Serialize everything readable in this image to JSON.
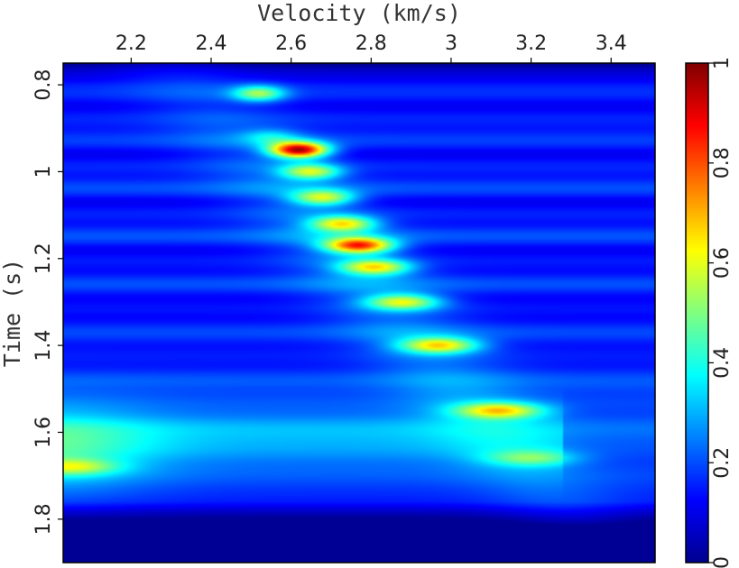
{
  "chart_data": {
    "type": "heatmap",
    "colormap": "jet",
    "xlabel": "Velocity (km/s)",
    "ylabel": "Time (s)",
    "xlim": [
      2.03,
      3.51
    ],
    "ylim": [
      0.75,
      1.9
    ],
    "y_inverted": true,
    "x_axis_position": "top",
    "x_ticks": [
      2.2,
      2.4,
      2.6,
      2.8,
      3,
      3.2,
      3.4
    ],
    "x_tick_labels": [
      "2.2",
      "2.4",
      "2.6",
      "2.8",
      "3",
      "3.2",
      "3.4"
    ],
    "y_ticks": [
      0.8,
      1,
      1.2,
      1.4,
      1.6,
      1.8
    ],
    "y_tick_labels": [
      "0.8",
      "1",
      "1.2",
      "1.4",
      "1.6",
      "1.8"
    ],
    "colorbar": {
      "range": [
        0,
        1
      ],
      "ticks": [
        0,
        0.2,
        0.4,
        0.6,
        0.8,
        1
      ],
      "tick_labels": [
        "0",
        "0.2",
        "0.4",
        "0.6",
        "0.8",
        "1"
      ]
    },
    "semblance_peaks": [
      {
        "velocity": 2.52,
        "time": 0.82,
        "value": 0.55
      },
      {
        "velocity": 2.55,
        "time": 0.92,
        "value": 0.35
      },
      {
        "velocity": 2.62,
        "time": 0.95,
        "value": 1.0
      },
      {
        "velocity": 2.65,
        "time": 1.0,
        "value": 0.6
      },
      {
        "velocity": 2.68,
        "time": 1.06,
        "value": 0.6
      },
      {
        "velocity": 2.73,
        "time": 1.12,
        "value": 0.65
      },
      {
        "velocity": 2.77,
        "time": 1.17,
        "value": 0.85
      },
      {
        "velocity": 2.81,
        "time": 1.22,
        "value": 0.65
      },
      {
        "velocity": 2.88,
        "time": 1.3,
        "value": 0.6
      },
      {
        "velocity": 2.97,
        "time": 1.4,
        "value": 0.65
      },
      {
        "velocity": 3.12,
        "time": 1.55,
        "value": 0.6
      },
      {
        "velocity": 3.2,
        "time": 1.66,
        "value": 0.4
      },
      {
        "velocity": 2.05,
        "time": 1.68,
        "value": 0.45
      }
    ]
  }
}
